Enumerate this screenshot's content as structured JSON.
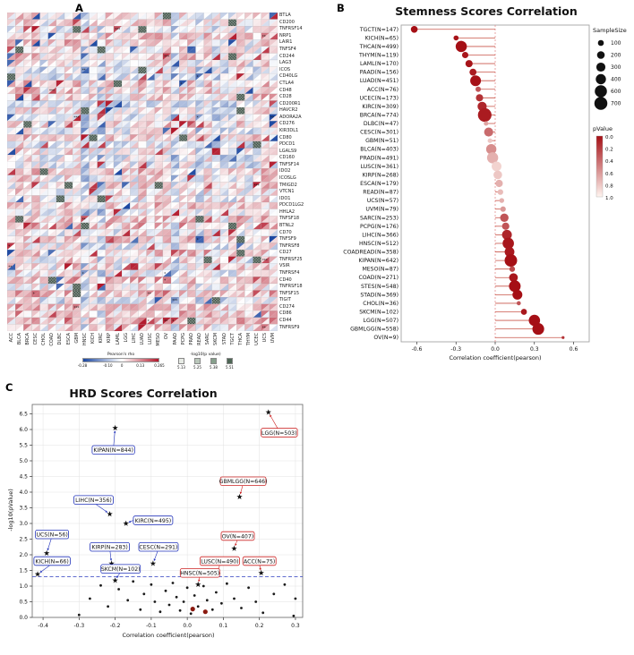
{
  "panels": {
    "a": "A",
    "b": "B",
    "c": "C"
  },
  "chart_data": [
    {
      "type": "heatmap",
      "name": "immune-checkpoint-gene-correlation-heatmap",
      "genes": [
        "BTLA",
        "CD200",
        "TNFRSF14",
        "NRP1",
        "LAIR1",
        "TNFSF4",
        "CD244",
        "LAG3",
        "ICOS",
        "CD40LG",
        "CTLA4",
        "CD48",
        "CD28",
        "CD200R1",
        "HAVCR2",
        "ADORA2A",
        "CD276",
        "KIR3DL1",
        "CD80",
        "PDCD1",
        "LGALS9",
        "CD160",
        "TNFSF14",
        "IDO2",
        "ICOSLG",
        "TMIGD2",
        "VTCN1",
        "IDO1",
        "PDCD1LG2",
        "HHLA2",
        "TNFSF18",
        "BTNL2",
        "CD70",
        "TNFSF9",
        "TNFRSF8",
        "CD27",
        "TNFRSF25",
        "VSIR",
        "TNFRSF4",
        "CD40",
        "TNFRSF18",
        "TNFSF15",
        "TIGIT",
        "CD274",
        "CD86",
        "CD44",
        "TNFRSF9"
      ],
      "cancers": [
        "ACC",
        "BLCA",
        "BRCA",
        "CESC",
        "CHOL",
        "COAD",
        "DLBC",
        "ESCA",
        "GBM",
        "HNSC",
        "KICH",
        "KIRC",
        "KIRP",
        "LAML",
        "LGG",
        "LIHC",
        "LUAD",
        "LUSC",
        "MESO",
        "OV",
        "PAAD",
        "PCPG",
        "PRAD",
        "READ",
        "SARC",
        "SKCM",
        "STAD",
        "TGCT",
        "THCA",
        "THYM",
        "UCEC",
        "UCS",
        "UVM"
      ],
      "legend": {
        "rho_title": "Pearson's rho",
        "rho_ticks": [
          "-0.28",
          "-0.10",
          "0",
          "0.13",
          "0.265"
        ],
        "logp_title": "-log10(p value)",
        "logp_ticks": [
          "5.13",
          "5.25",
          "5.38",
          "5.51"
        ],
        "logp_colors": [
          "#e6eae4",
          "#b9c6ba",
          "#86a08c",
          "#4e6655"
        ]
      },
      "color_scale": {
        "negative": "#1a46a0",
        "zero": "#ffffff",
        "positive": "#b2182b",
        "significant": "#47594f"
      },
      "seed": 20240815
    },
    {
      "type": "scatter",
      "subtype": "lollipop",
      "title": "Stemness Scores Correlation",
      "xlabel": "Correlation coefficient(pearson)",
      "xlim": [
        -0.72,
        0.72
      ],
      "xticks": [
        -0.6,
        -0.3,
        0.0,
        0.3,
        0.6
      ],
      "legend": {
        "size_title": "SampleSize",
        "sizes": [
          100,
          200,
          300,
          400,
          600,
          700
        ],
        "p_title": "pValue",
        "p_ticks": [
          "0.0",
          "0.2",
          "0.4",
          "0.6",
          "0.8",
          "1.0"
        ]
      },
      "rows": [
        {
          "label": "TGCT(N=147)",
          "n": 147,
          "r": -0.62,
          "p": 0.001
        },
        {
          "label": "KICH(N=65)",
          "n": 65,
          "r": -0.3,
          "p": 0.02
        },
        {
          "label": "THCA(N=499)",
          "n": 499,
          "r": -0.26,
          "p": 0.001
        },
        {
          "label": "THYM(N=119)",
          "n": 119,
          "r": -0.23,
          "p": 0.03
        },
        {
          "label": "LAML(N=170)",
          "n": 170,
          "r": -0.2,
          "p": 0.02
        },
        {
          "label": "PAAD(N=156)",
          "n": 156,
          "r": -0.17,
          "p": 0.05
        },
        {
          "label": "LUAD(N=451)",
          "n": 451,
          "r": -0.15,
          "p": 0.01
        },
        {
          "label": "ACC(N=76)",
          "n": 76,
          "r": -0.13,
          "p": 0.3
        },
        {
          "label": "UCEC(N=173)",
          "n": 173,
          "r": -0.12,
          "p": 0.15
        },
        {
          "label": "KIRC(N=309)",
          "n": 309,
          "r": -0.1,
          "p": 0.1
        },
        {
          "label": "BRCA(N=774)",
          "n": 774,
          "r": -0.08,
          "p": 0.05
        },
        {
          "label": "DLBC(N=47)",
          "n": 47,
          "r": -0.07,
          "p": 0.65
        },
        {
          "label": "CESC(N=301)",
          "n": 301,
          "r": -0.05,
          "p": 0.4
        },
        {
          "label": "GBM(N=51)",
          "n": 51,
          "r": -0.04,
          "p": 0.8
        },
        {
          "label": "BLCA(N=403)",
          "n": 403,
          "r": -0.03,
          "p": 0.55
        },
        {
          "label": "PRAD(N=491)",
          "n": 491,
          "r": -0.02,
          "p": 0.7
        },
        {
          "label": "LUSC(N=361)",
          "n": 361,
          "r": 0.01,
          "p": 0.85
        },
        {
          "label": "KIRP(N=268)",
          "n": 268,
          "r": 0.02,
          "p": 0.8
        },
        {
          "label": "ESCA(N=179)",
          "n": 179,
          "r": 0.03,
          "p": 0.7
        },
        {
          "label": "READ(N=87)",
          "n": 87,
          "r": 0.04,
          "p": 0.75
        },
        {
          "label": "UCS(N=57)",
          "n": 57,
          "r": 0.05,
          "p": 0.7
        },
        {
          "label": "UVM(N=79)",
          "n": 79,
          "r": 0.06,
          "p": 0.6
        },
        {
          "label": "SARC(N=253)",
          "n": 253,
          "r": 0.07,
          "p": 0.3
        },
        {
          "label": "PCPG(N=176)",
          "n": 176,
          "r": 0.08,
          "p": 0.3
        },
        {
          "label": "LIHC(N=366)",
          "n": 366,
          "r": 0.09,
          "p": 0.1
        },
        {
          "label": "HNSC(N=512)",
          "n": 512,
          "r": 0.1,
          "p": 0.03
        },
        {
          "label": "COADREAD(N=358)",
          "n": 358,
          "r": 0.11,
          "p": 0.04
        },
        {
          "label": "KIPAN(N=642)",
          "n": 642,
          "r": 0.12,
          "p": 0.005
        },
        {
          "label": "MESO(N=87)",
          "n": 87,
          "r": 0.13,
          "p": 0.25
        },
        {
          "label": "COAD(N=271)",
          "n": 271,
          "r": 0.14,
          "p": 0.03
        },
        {
          "label": "STES(N=548)",
          "n": 548,
          "r": 0.15,
          "p": 0.002
        },
        {
          "label": "STAD(N=369)",
          "n": 369,
          "r": 0.17,
          "p": 0.002
        },
        {
          "label": "CHOL(N=36)",
          "n": 36,
          "r": 0.18,
          "p": 0.3
        },
        {
          "label": "SKCM(N=102)",
          "n": 102,
          "r": 0.22,
          "p": 0.04
        },
        {
          "label": "LGG(N=507)",
          "n": 507,
          "r": 0.3,
          "p": 0.001
        },
        {
          "label": "GBMLGG(N=558)",
          "n": 558,
          "r": 0.33,
          "p": 0.001
        },
        {
          "label": "OV(N=9)",
          "n": 9,
          "r": 0.52,
          "p": 0.15
        }
      ]
    },
    {
      "type": "scatter",
      "title": "HRD Scores Correlation",
      "xlabel": "Correlation coefficient(pearson)",
      "ylabel": "-log10(pValue)",
      "xlim": [
        -0.43,
        0.32
      ],
      "ylim": [
        0,
        6.8
      ],
      "xticks": [
        -0.4,
        -0.3,
        -0.2,
        -0.1,
        0.0,
        0.1,
        0.2,
        0.3
      ],
      "yticks": [
        0.0,
        0.5,
        1.0,
        1.5,
        2.0,
        2.5,
        3.0,
        3.5,
        4.0,
        4.5,
        5.0,
        5.5,
        6.0,
        6.5
      ],
      "threshold": 1.3,
      "threshold_color": "#2e3ec0",
      "label_colors": {
        "blue": "#2233bb",
        "red": "#cc2222"
      },
      "labeled_points": [
        {
          "label": "LGG(N=503)",
          "x": 0.225,
          "y": 6.55,
          "lx": 0.255,
          "ly": 5.9,
          "color": "red"
        },
        {
          "label": "KIPAN(N=844)",
          "x": -0.2,
          "y": 6.05,
          "lx": -0.205,
          "ly": 5.35,
          "color": "blue"
        },
        {
          "label": "GBMLGG(N=646)",
          "x": 0.145,
          "y": 3.85,
          "lx": 0.155,
          "ly": 4.35,
          "color": "red"
        },
        {
          "label": "LIHC(N=356)",
          "x": -0.215,
          "y": 3.3,
          "lx": -0.26,
          "ly": 3.75,
          "color": "blue"
        },
        {
          "label": "KIRC(N=495)",
          "x": -0.17,
          "y": 3.0,
          "lx": -0.095,
          "ly": 3.1,
          "color": "blue"
        },
        {
          "label": "UCS(N=56)",
          "x": -0.39,
          "y": 2.05,
          "lx": -0.375,
          "ly": 2.65,
          "color": "blue"
        },
        {
          "label": "KIRP(N=283)",
          "x": -0.21,
          "y": 1.72,
          "lx": -0.215,
          "ly": 2.25,
          "color": "blue"
        },
        {
          "label": "CESC(N=291)",
          "x": -0.095,
          "y": 1.72,
          "lx": -0.08,
          "ly": 2.25,
          "color": "blue"
        },
        {
          "label": "OV(N=407)",
          "x": 0.13,
          "y": 2.2,
          "lx": 0.14,
          "ly": 2.6,
          "color": "red"
        },
        {
          "label": "KICH(N=66)",
          "x": -0.415,
          "y": 1.38,
          "lx": -0.375,
          "ly": 1.8,
          "color": "blue"
        },
        {
          "label": "SKCM(N=102)",
          "x": -0.2,
          "y": 1.18,
          "lx": -0.185,
          "ly": 1.55,
          "color": "blue"
        },
        {
          "label": "LUSC(N=490)",
          "x": 0.085,
          "y": 1.38,
          "lx": 0.09,
          "ly": 1.8,
          "color": "red"
        },
        {
          "label": "HNSC(N=505)",
          "x": 0.03,
          "y": 1.05,
          "lx": 0.035,
          "ly": 1.42,
          "color": "red"
        },
        {
          "label": "ACC(N=75)",
          "x": 0.205,
          "y": 1.42,
          "lx": 0.2,
          "ly": 1.8,
          "color": "red"
        }
      ],
      "points": [
        [
          -0.3,
          0.08
        ],
        [
          -0.27,
          0.6
        ],
        [
          -0.24,
          1.02
        ],
        [
          -0.22,
          0.35
        ],
        [
          -0.19,
          0.9
        ],
        [
          -0.165,
          0.55
        ],
        [
          -0.15,
          1.15
        ],
        [
          -0.13,
          0.25
        ],
        [
          -0.12,
          0.75
        ],
        [
          -0.1,
          1.05
        ],
        [
          -0.09,
          0.5
        ],
        [
          -0.075,
          0.18
        ],
        [
          -0.06,
          0.85
        ],
        [
          -0.05,
          0.4
        ],
        [
          -0.04,
          1.1
        ],
        [
          -0.03,
          0.65
        ],
        [
          -0.02,
          0.22
        ],
        [
          -0.01,
          0.5
        ],
        [
          0.0,
          0.95
        ],
        [
          0.01,
          0.12
        ],
        [
          0.02,
          0.7
        ],
        [
          0.03,
          0.35
        ],
        [
          0.045,
          1.0
        ],
        [
          0.055,
          0.55
        ],
        [
          0.07,
          0.25
        ],
        [
          0.08,
          0.8
        ],
        [
          0.095,
          0.45
        ],
        [
          0.11,
          1.08
        ],
        [
          0.13,
          0.6
        ],
        [
          0.15,
          0.3
        ],
        [
          0.17,
          0.95
        ],
        [
          0.19,
          0.5
        ],
        [
          0.21,
          0.15
        ],
        [
          0.24,
          0.75
        ],
        [
          0.27,
          1.05
        ],
        [
          0.295,
          0.05
        ],
        [
          0.3,
          0.6
        ]
      ],
      "accent_points": [
        [
          0.015,
          0.27
        ],
        [
          0.05,
          0.18
        ]
      ]
    }
  ]
}
